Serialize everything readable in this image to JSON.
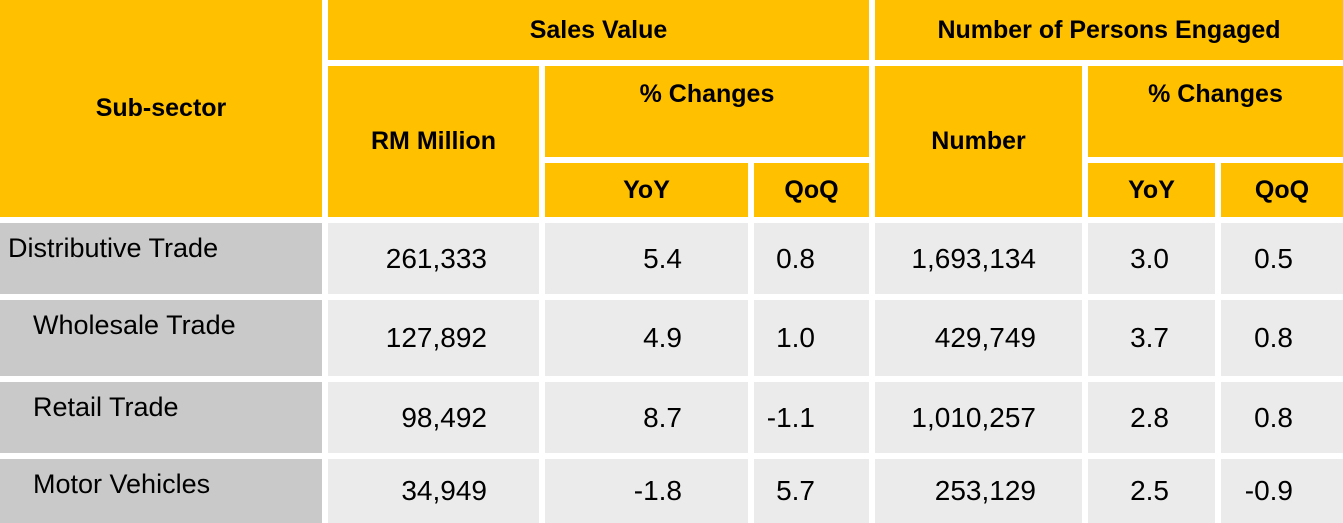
{
  "table": {
    "header": {
      "sub_sector": "Sub-sector",
      "sales_value": "Sales Value",
      "persons_engaged": "Number of Persons Engaged",
      "rm_million": "RM Million",
      "pct_changes_sales": "% Changes",
      "pct_changes_persons": "% Changes",
      "number": "Number",
      "yoy_sales": "YoY",
      "qoq_sales": "QoQ",
      "yoy_persons": "YoY",
      "qoq_persons": "QoQ"
    },
    "rows": [
      {
        "name": "Distributive Trade",
        "sales_rm_million": "261,333",
        "sales_yoy": "5.4",
        "sales_qoq": "0.8",
        "persons_number": "1,693,134",
        "persons_yoy": "3.0",
        "persons_qoq": "0.5"
      },
      {
        "name": "Wholesale Trade",
        "sales_rm_million": "127,892",
        "sales_yoy": "4.9",
        "sales_qoq": "1.0",
        "persons_number": "429,749",
        "persons_yoy": "3.7",
        "persons_qoq": "0.8"
      },
      {
        "name": "Retail Trade",
        "sales_rm_million": "98,492",
        "sales_yoy": "8.7",
        "sales_qoq": "-1.1",
        "persons_number": "1,010,257",
        "persons_yoy": "2.8",
        "persons_qoq": "0.8"
      },
      {
        "name": "Motor Vehicles",
        "sales_rm_million": "34,949",
        "sales_yoy": "-1.8",
        "sales_qoq": "5.7",
        "persons_number": "253,129",
        "persons_yoy": "2.5",
        "persons_qoq": "-0.9"
      }
    ],
    "colors": {
      "header_bg": "#FFC000",
      "label_cell_bg": "#C9C9C9",
      "data_cell_bg": "#EBEBEB",
      "grid_line": "#FFFFFF",
      "text": "#000000"
    }
  },
  "chart_data": {
    "type": "table",
    "title": "",
    "column_groups": [
      {
        "label": "Sales Value",
        "columns": [
          "RM Million",
          "% Changes YoY",
          "% Changes QoQ"
        ]
      },
      {
        "label": "Number of Persons Engaged",
        "columns": [
          "Number",
          "% Changes YoY",
          "% Changes QoQ"
        ]
      }
    ],
    "columns": [
      "Sub-sector",
      "Sales Value RM Million",
      "Sales Value YoY %",
      "Sales Value QoQ %",
      "Persons Engaged Number",
      "Persons Engaged YoY %",
      "Persons Engaged QoQ %"
    ],
    "rows": [
      [
        "Distributive Trade",
        261333,
        5.4,
        0.8,
        1693134,
        3.0,
        0.5
      ],
      [
        "Wholesale Trade",
        127892,
        4.9,
        1.0,
        429749,
        3.7,
        0.8
      ],
      [
        "Retail Trade",
        98492,
        8.7,
        -1.1,
        1010257,
        2.8,
        0.8
      ],
      [
        "Motor Vehicles",
        34949,
        -1.8,
        5.7,
        253129,
        2.5,
        -0.9
      ]
    ]
  }
}
